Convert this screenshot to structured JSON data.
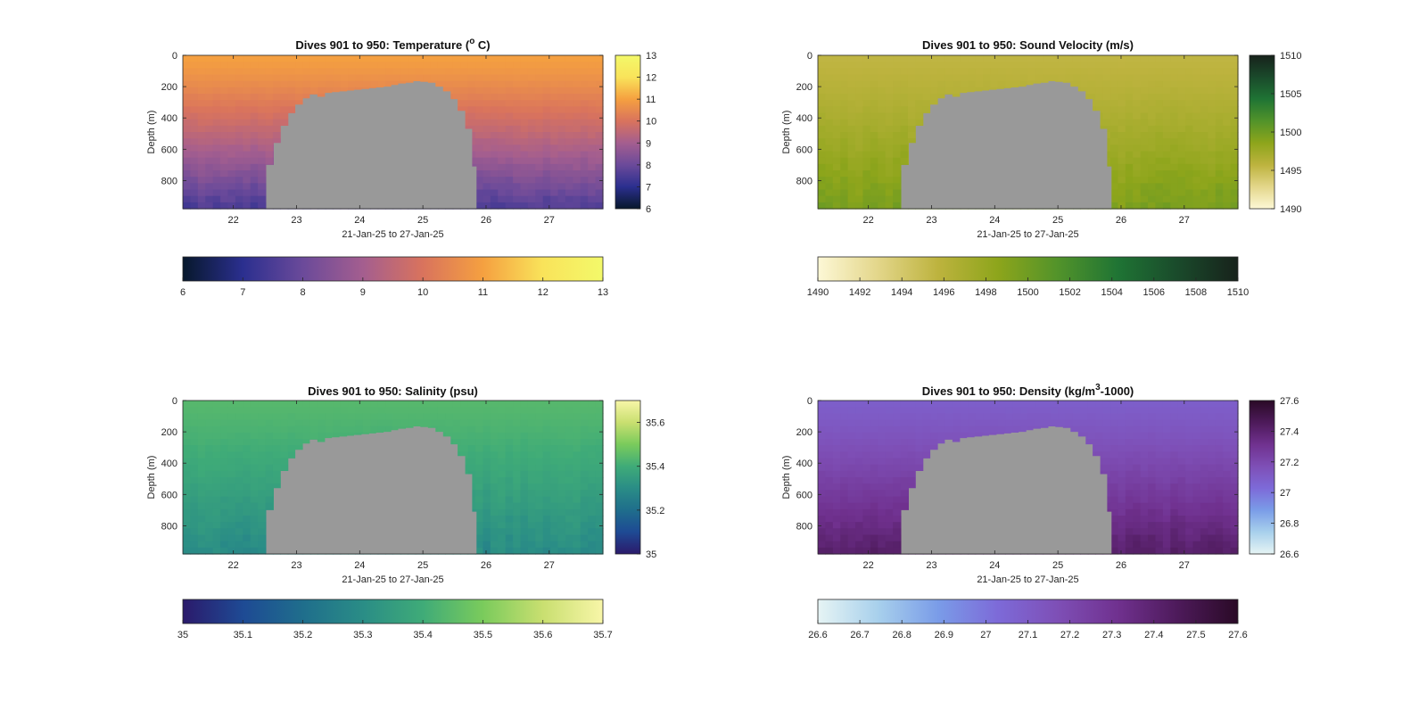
{
  "chart_data": [
    {
      "type": "heatmap",
      "title_main": "Dives 901 to 950: Temperature (",
      "title_sup": "o",
      "title_end": " C)",
      "xlabel": "21-Jan-25 to 27-Jan-25",
      "ylabel": "Depth (m)",
      "xlim": [
        21.2,
        27.85
      ],
      "ylim": [
        0,
        980
      ],
      "x_ticks": [
        "22",
        "23",
        "24",
        "25",
        "26",
        "27"
      ],
      "y_ticks": [
        "0",
        "200",
        "400",
        "600",
        "800"
      ],
      "clim": [
        6,
        13
      ],
      "side_cbar_ticks": [
        "6",
        "7",
        "8",
        "9",
        "10",
        "11",
        "12",
        "13"
      ],
      "bottom_cbar_ticks": [
        "6",
        "7",
        "8",
        "9",
        "10",
        "11",
        "12",
        "13"
      ],
      "surface_value": 11.0,
      "bottom_value": 7.5,
      "gap_x": [
        22.52,
        25.85
      ],
      "colormap": [
        "#07182c",
        "#2b2f8f",
        "#6b4a9a",
        "#a45e8f",
        "#d9735d",
        "#f5a040",
        "#f9e35a",
        "#f3f96a"
      ]
    },
    {
      "type": "heatmap",
      "title_main": "Dives 901 to 950: Sound Velocity (m/s)",
      "title_sup": "",
      "title_end": "",
      "xlabel": "21-Jan-25 to 27-Jan-25",
      "ylabel": "Depth (m)",
      "xlim": [
        21.2,
        27.85
      ],
      "ylim": [
        0,
        980
      ],
      "x_ticks": [
        "22",
        "23",
        "24",
        "25",
        "26",
        "27"
      ],
      "y_ticks": [
        "0",
        "200",
        "400",
        "600",
        "800"
      ],
      "clim": [
        1490,
        1510
      ],
      "side_cbar_ticks": [
        "1490",
        "1495",
        "1500",
        "1505",
        "1510"
      ],
      "bottom_cbar_ticks": [
        "1490",
        "1492",
        "1494",
        "1496",
        "1498",
        "1500",
        "1502",
        "1504",
        "1506",
        "1508",
        "1510"
      ],
      "surface_value": 1495.5,
      "bottom_value": 1499.5,
      "gap_x": [
        22.52,
        25.85
      ],
      "colormap": [
        "#fdf8d6",
        "#e3d68a",
        "#bdb33e",
        "#8da51b",
        "#52932a",
        "#1f7434",
        "#1a4a2b",
        "#17221b"
      ]
    },
    {
      "type": "heatmap",
      "title_main": "Dives 901 to 950: Salinity (psu)",
      "title_sup": "",
      "title_end": "",
      "xlabel": "21-Jan-25 to 27-Jan-25",
      "ylabel": "Depth (m)",
      "xlim": [
        21.2,
        27.85
      ],
      "ylim": [
        0,
        980
      ],
      "x_ticks": [
        "22",
        "23",
        "24",
        "25",
        "26",
        "27"
      ],
      "y_ticks": [
        "0",
        "200",
        "400",
        "600",
        "800"
      ],
      "clim": [
        35,
        35.7
      ],
      "side_cbar_ticks": [
        "35",
        "35.2",
        "35.4",
        "35.6"
      ],
      "bottom_cbar_ticks": [
        "35",
        "35.1",
        "35.2",
        "35.3",
        "35.4",
        "35.5",
        "35.6",
        "35.7"
      ],
      "surface_value": 35.44,
      "bottom_value": 35.29,
      "gap_x": [
        22.52,
        25.85
      ],
      "colormap": [
        "#2b1a6b",
        "#1e4a94",
        "#1f6e8c",
        "#2a8d86",
        "#3fab78",
        "#7acb5c",
        "#c9df70",
        "#f8f6a8"
      ]
    },
    {
      "type": "heatmap",
      "title_main": "Dives 901 to 950: Density (kg/m",
      "title_sup": "3",
      "title_end": "-1000)",
      "xlabel": "21-Jan-25 to 27-Jan-25",
      "ylabel": "Depth (m)",
      "xlim": [
        21.2,
        27.85
      ],
      "ylim": [
        0,
        980
      ],
      "x_ticks": [
        "22",
        "23",
        "24",
        "25",
        "26",
        "27"
      ],
      "y_ticks": [
        "0",
        "200",
        "400",
        "600",
        "800"
      ],
      "clim": [
        26.6,
        27.6
      ],
      "side_cbar_ticks": [
        "26.6",
        "26.8",
        "27",
        "27.2",
        "27.4",
        "27.6"
      ],
      "bottom_cbar_ticks": [
        "26.6",
        "26.7",
        "26.8",
        "26.9",
        "27",
        "27.1",
        "27.2",
        "27.3",
        "27.4",
        "27.5",
        "27.6"
      ],
      "surface_value": 27.09,
      "bottom_value": 27.42,
      "gap_x": [
        22.52,
        25.85
      ],
      "colormap": [
        "#e6f4f4",
        "#a8d0ec",
        "#7a9ce8",
        "#7d6ad8",
        "#7e4fb6",
        "#70318f",
        "#4d1a5a",
        "#2a0a26"
      ]
    }
  ],
  "gap_color": "#999999",
  "gap_profile_x": [
    22.52,
    22.64,
    22.75,
    22.87,
    22.98,
    23.1,
    23.21,
    23.33,
    23.45,
    23.56,
    23.68,
    23.8,
    23.91,
    24.03,
    24.15,
    24.26,
    24.38,
    24.5,
    24.61,
    24.73,
    24.85,
    24.96,
    25.08,
    25.2,
    25.32,
    25.44,
    25.55,
    25.67,
    25.78,
    25.85
  ],
  "gap_profile_top": [
    700,
    560,
    450,
    370,
    315,
    275,
    250,
    265,
    240,
    235,
    230,
    225,
    220,
    215,
    210,
    205,
    200,
    190,
    180,
    175,
    165,
    170,
    175,
    200,
    230,
    280,
    355,
    470,
    710,
    980
  ]
}
